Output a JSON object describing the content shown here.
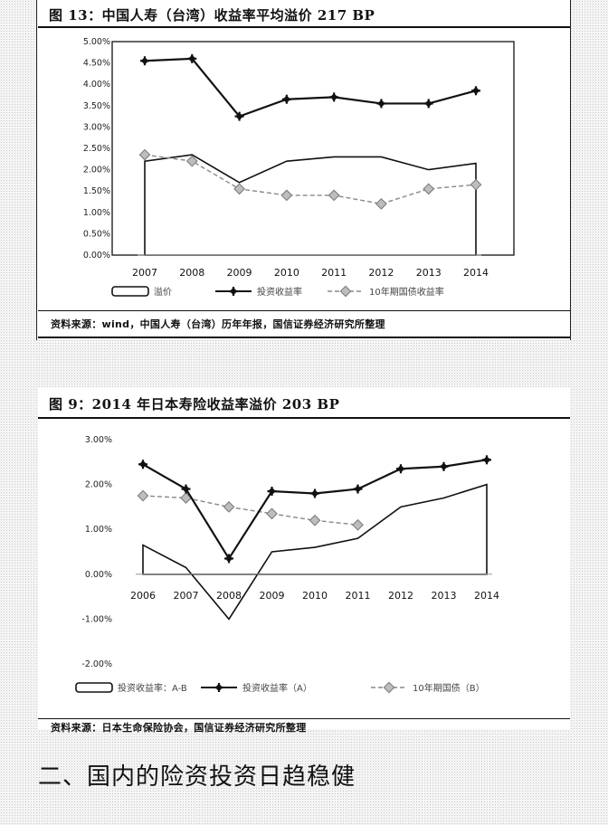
{
  "heading": "二、国内的险资投资日趋稳健",
  "chart_data": [
    {
      "type": "line",
      "title": "图 13：中国人寿（台湾）收益率平均溢价 217 BP",
      "categories": [
        "2007",
        "2008",
        "2009",
        "2010",
        "2011",
        "2012",
        "2013",
        "2014"
      ],
      "y_ticks": [
        "5.00%",
        "4.50%",
        "4.00%",
        "3.50%",
        "3.00%",
        "2.50%",
        "2.00%",
        "1.50%",
        "1.00%",
        "0.50%",
        "0.00%"
      ],
      "ylim": [
        0,
        5
      ],
      "legend_labels": [
        "溢价",
        "投资收益率",
        "10年期国债收益率"
      ],
      "series": [
        {
          "name": "溢价",
          "style": "area",
          "values": [
            2.2,
            2.35,
            1.7,
            2.2,
            2.3,
            2.3,
            2.0,
            2.15
          ]
        },
        {
          "name": "投资收益率",
          "style": "line-plus",
          "values": [
            4.55,
            4.6,
            3.25,
            3.65,
            3.7,
            3.55,
            3.55,
            3.85
          ]
        },
        {
          "name": "10年期国债收益率",
          "style": "dashed-diamond",
          "values": [
            2.35,
            2.2,
            1.55,
            1.4,
            1.4,
            1.2,
            1.55,
            1.65
          ]
        }
      ],
      "source": "资料来源：wind，中国人寿（台湾）历年年报，国信证券经济研究所整理"
    },
    {
      "type": "line",
      "title": "图 9：2014 年日本寿险收益率溢价 203 BP",
      "categories": [
        "2006",
        "2007",
        "2008",
        "2009",
        "2010",
        "2011",
        "2012",
        "2013",
        "2014"
      ],
      "y_ticks": [
        "3.00%",
        "2.00%",
        "1.00%",
        "0.00%",
        "-1.00%",
        "-2.00%"
      ],
      "ylim": [
        -2,
        3
      ],
      "legend_labels": [
        "投资收益率：A-B",
        "投资收益率（A）",
        "10年期国债（B）"
      ],
      "series": [
        {
          "name": "投资收益率：A-B",
          "style": "area",
          "values": [
            0.65,
            0.15,
            -1.0,
            0.5,
            0.6,
            0.8,
            1.5,
            1.7,
            2.0
          ]
        },
        {
          "name": "投资收益率（A）",
          "style": "line-plus",
          "values": [
            2.45,
            1.9,
            0.35,
            1.85,
            1.8,
            1.9,
            2.35,
            2.4,
            2.55
          ]
        },
        {
          "name": "10年期国债（B）",
          "style": "dashed-diamond",
          "values": [
            1.75,
            1.7,
            1.5,
            1.35,
            1.2,
            1.1,
            null,
            null,
            null
          ]
        }
      ],
      "source": "资料来源：日本生命保险协会，国信证券经济研究所整理"
    }
  ]
}
